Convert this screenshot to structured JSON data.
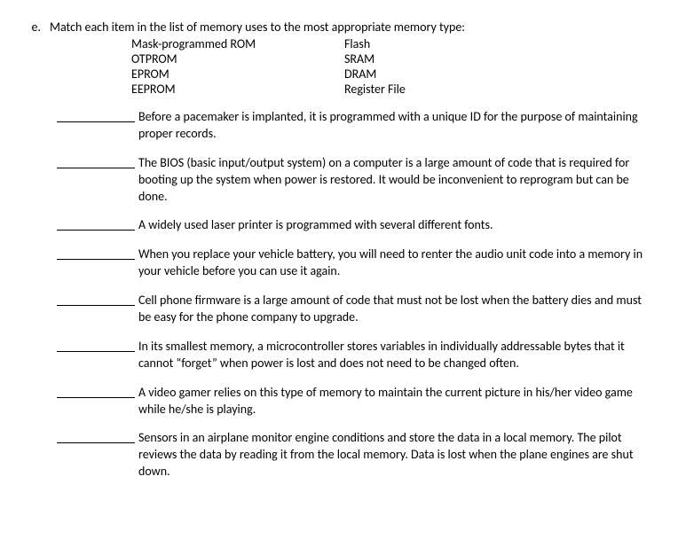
{
  "label": "e.",
  "prompt": "Match each item in the list of memory uses to the most appropriate memory type:",
  "options": {
    "col1": [
      "Mask-programmed ROM",
      "OTPROM",
      "EPROM",
      "EEPROM"
    ],
    "col2": [
      "Flash",
      "SRAM",
      "DRAM",
      "Register File"
    ]
  },
  "questions": [
    "Before a pacemaker is implanted, it is programmed with a unique ID for the purpose of maintaining proper records.",
    "The BIOS (basic input/output system) on a computer is a large amount of code that is required for booting up the system when power is restored. It would be inconvenient to reprogram but can be done.",
    "A widely used laser printer is programmed with several different fonts.",
    "When you replace your vehicle battery, you will need to renter the audio unit code into a memory in your vehicle before you can use it again.",
    "Cell phone firmware is a large amount of code that must not be lost when the battery dies and must be easy for the phone company to upgrade.",
    "In its smallest memory, a microcontroller stores variables in individually addressable bytes that it cannot “forget” when power is lost and does not need to be changed often.",
    "A video gamer relies on this type of memory to maintain the current picture in his/her video game while he/she is playing.",
    "Sensors in an airplane monitor engine conditions and store the data in a local memory. The pilot reviews the data by reading it from the local memory. Data is lost when the plane engines are shut down."
  ],
  "style": {
    "font_family": "Calibri",
    "font_size_pt": 11,
    "text_color": "#000000",
    "background_color": "#ffffff",
    "blank_line_color": "#000000"
  }
}
